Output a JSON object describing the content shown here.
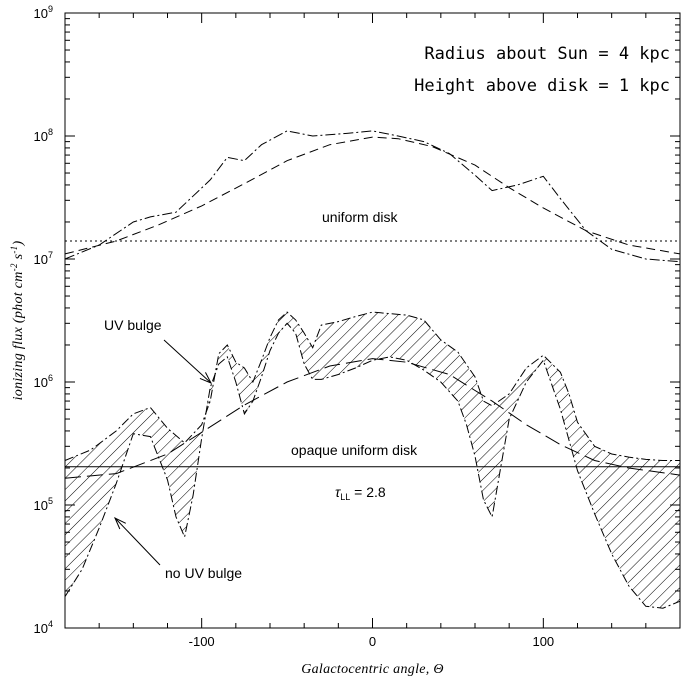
{
  "chart_data": {
    "type": "line",
    "xlabel": "Galactocentric angle, Θ",
    "ylabel_main": "ionizing flux (phot cm",
    "ylabel_exp1": "-2",
    "ylabel_mid": " s",
    "ylabel_exp2": "-1",
    "ylabel_end": ")",
    "xlim": [
      -180,
      180
    ],
    "ylim": [
      10000,
      1000000000
    ],
    "yscale": "log",
    "x_ticks": [
      {
        "value": -100,
        "label": "-100"
      },
      {
        "value": 0,
        "label": "0"
      },
      {
        "value": 100,
        "label": "100"
      }
    ],
    "y_ticks": [
      {
        "value": 10000,
        "base": "10",
        "exp": "4"
      },
      {
        "value": 100000,
        "base": "10",
        "exp": "5"
      },
      {
        "value": 1000000,
        "base": "10",
        "exp": "6"
      },
      {
        "value": 10000000,
        "base": "10",
        "exp": "7"
      },
      {
        "value": 100000000,
        "base": "10",
        "exp": "8"
      },
      {
        "value": 1000000000,
        "base": "10",
        "exp": "9"
      }
    ],
    "info_lines": [
      "Radius about Sun = 4 kpc",
      "Height above disk = 1 kpc"
    ],
    "annotations": {
      "uniform_disk": "uniform disk",
      "uv_bulge": "UV bulge",
      "opaque_uniform_disk": "opaque uniform disk",
      "tau_symbol": "τ",
      "tau_sub": "LL",
      "tau_value": " = 2.8",
      "no_uv_bulge": "no UV bulge"
    },
    "series": [
      {
        "style": "dotted",
        "x": [
          -180,
          180
        ],
        "y": [
          14000000,
          14000000
        ]
      },
      {
        "style": "dashed",
        "x": [
          -180,
          -150,
          -125,
          -100,
          -75,
          -50,
          -25,
          0,
          15,
          35,
          60,
          80,
          100,
          125,
          150,
          180
        ],
        "y": [
          11000000,
          14000000,
          19000000,
          27000000,
          41000000,
          63000000,
          85000000,
          98000000,
          95000000,
          82000000,
          58000000,
          38000000,
          26000000,
          17000000,
          13000000,
          11000000
        ]
      },
      {
        "style": "dashdot",
        "x": [
          -180,
          -160,
          -140,
          -130,
          -115,
          -95,
          -85,
          -75,
          -65,
          -50,
          -35,
          -15,
          0,
          15,
          30,
          45,
          60,
          70,
          85,
          100,
          110,
          125,
          140,
          160,
          180
        ],
        "y": [
          10000000,
          13000000,
          20000000,
          22000000,
          24000000,
          44000000,
          67000000,
          63000000,
          85000000,
          110000000,
          100000000,
          105000000,
          110000000,
          100000000,
          90000000,
          72000000,
          48000000,
          36000000,
          40000000,
          47000000,
          31000000,
          17000000,
          12000000,
          10000000,
          9500000
        ]
      },
      {
        "style": "solid",
        "x": [
          -180,
          180
        ],
        "y": [
          205000,
          205000
        ]
      },
      {
        "style": "longdash",
        "x": [
          -180,
          -150,
          -120,
          -100,
          -75,
          -50,
          -25,
          0,
          20,
          45,
          70,
          90,
          110,
          130,
          150,
          180
        ],
        "y": [
          165000,
          180000,
          260000,
          390000,
          650000,
          1000000,
          1350000,
          1550000,
          1450000,
          1150000,
          700000,
          450000,
          310000,
          230000,
          200000,
          175000
        ]
      },
      {
        "style": "band_upper",
        "x": [
          -180,
          -165,
          -150,
          -140,
          -130,
          -120,
          -110,
          -100,
          -95,
          -90,
          -85,
          -80,
          -75,
          -70,
          -65,
          -60,
          -55,
          -50,
          -45,
          -40,
          -35,
          -30,
          -20,
          -10,
          0,
          10,
          20,
          30,
          40,
          50,
          60,
          65,
          70,
          80,
          90,
          100,
          110,
          115,
          120,
          130,
          140,
          150,
          160,
          170,
          180
        ],
        "y": [
          230000,
          280000,
          400000,
          550000,
          620000,
          420000,
          320000,
          450000,
          700000,
          1700000,
          2000000,
          1450000,
          1300000,
          1000000,
          1500000,
          2300000,
          3200000,
          3700000,
          3200000,
          2500000,
          1900000,
          2900000,
          3100000,
          3400000,
          3700000,
          3600000,
          3500000,
          3200000,
          2200000,
          1750000,
          1100000,
          700000,
          640000,
          800000,
          1300000,
          1650000,
          1200000,
          800000,
          470000,
          300000,
          260000,
          245000,
          235000,
          230000,
          230000
        ]
      },
      {
        "style": "band_lower",
        "x": [
          -180,
          -170,
          -160,
          -150,
          -140,
          -130,
          -120,
          -115,
          -110,
          -105,
          -100,
          -95,
          -90,
          -85,
          -80,
          -75,
          -70,
          -65,
          -60,
          -55,
          -50,
          -45,
          -40,
          -35,
          -30,
          -20,
          -10,
          0,
          10,
          20,
          30,
          40,
          50,
          55,
          60,
          65,
          70,
          75,
          80,
          90,
          100,
          110,
          120,
          130,
          140,
          150,
          160,
          170,
          180
        ],
        "y": [
          18000,
          30000,
          65000,
          150000,
          380000,
          360000,
          160000,
          80000,
          55000,
          120000,
          350000,
          900000,
          1400000,
          1600000,
          1000000,
          550000,
          700000,
          1100000,
          1800000,
          2500000,
          3000000,
          2500000,
          1400000,
          1050000,
          1050000,
          1150000,
          1300000,
          1500000,
          1600000,
          1500000,
          1250000,
          1000000,
          700000,
          450000,
          250000,
          110000,
          80000,
          200000,
          500000,
          1000000,
          1500000,
          600000,
          190000,
          85000,
          40000,
          22000,
          15000,
          14500,
          16500
        ]
      }
    ]
  }
}
